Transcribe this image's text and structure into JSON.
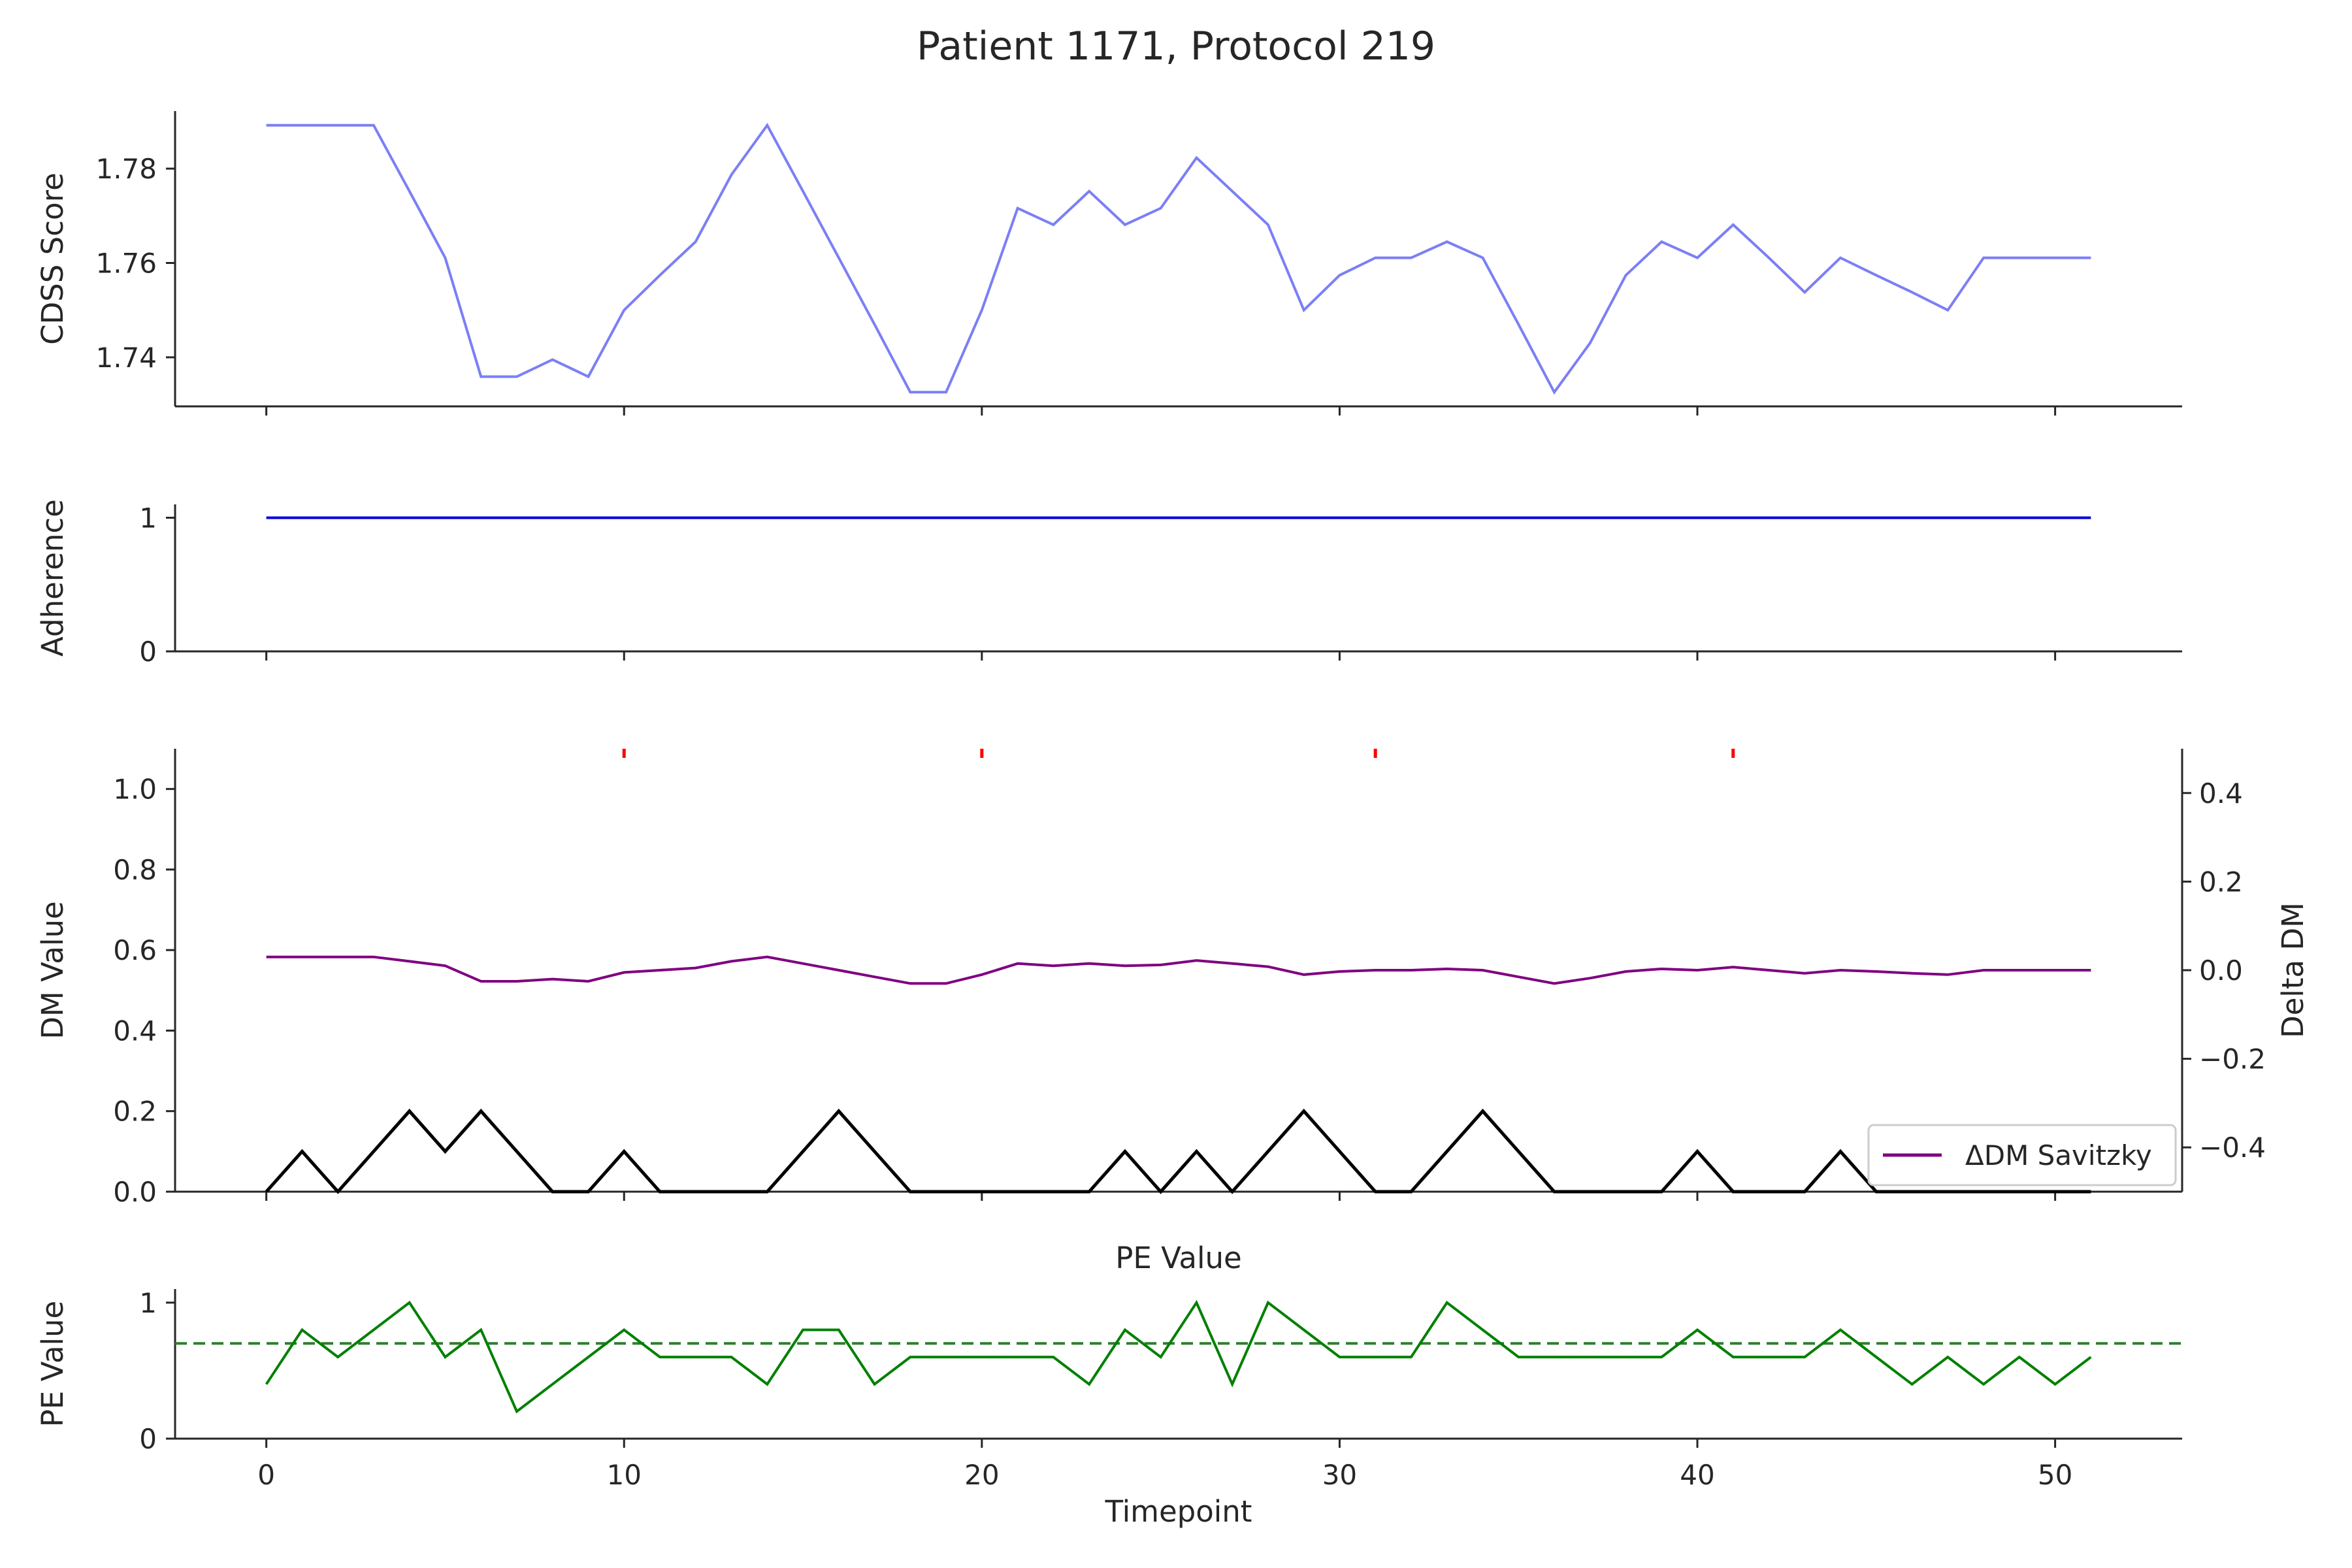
{
  "title": "Patient 1171, Protocol 219",
  "chart_data": [
    {
      "id": "cdss",
      "type": "line",
      "title": "",
      "xlabel": "",
      "ylabel": "CDSS Score",
      "xlim": [
        -2.55,
        53.55
      ],
      "ylim": [
        1.7296,
        1.7922
      ],
      "yticks": [
        1.74,
        1.76,
        1.78
      ],
      "ytick_labels": [
        "1.74",
        "1.76",
        "1.78"
      ],
      "xticks": [
        0,
        10,
        20,
        30,
        40,
        50
      ],
      "x": [
        0,
        1,
        2,
        3,
        4,
        5,
        6,
        7,
        8,
        9,
        10,
        11,
        12,
        13,
        14,
        15,
        16,
        17,
        18,
        19,
        20,
        21,
        22,
        23,
        24,
        25,
        26,
        27,
        28,
        29,
        30,
        31,
        32,
        33,
        34,
        35,
        36,
        37,
        38,
        39,
        40,
        41,
        42,
        43,
        44,
        45,
        46,
        47,
        48,
        49,
        50,
        51
      ],
      "series": [
        {
          "values": [
            1.7892,
            1.7892,
            1.7892,
            1.7892,
            1.7752,
            1.7611,
            1.7359,
            1.7359,
            1.7395,
            1.7359,
            1.75,
            1.7574,
            1.7645,
            1.7787,
            1.7892,
            1.7752,
            1.7611,
            1.747,
            1.7326,
            1.7326,
            1.75,
            1.7716,
            1.7681,
            1.7752,
            1.7681,
            1.7716,
            1.7823,
            1.7752,
            1.7681,
            1.75,
            1.7574,
            1.7611,
            1.7611,
            1.7645,
            1.7611,
            1.747,
            1.7326,
            1.743,
            1.7574,
            1.7645,
            1.7611,
            1.7681,
            1.7611,
            1.7538,
            1.7611,
            1.7574,
            1.7538,
            1.75,
            1.7611,
            1.7611,
            1.7611,
            1.7611
          ],
          "color": "#7b7ff5"
        }
      ],
      "grid": false
    },
    {
      "id": "adherence",
      "type": "line",
      "title": "",
      "xlabel": "",
      "ylabel": "Adherence",
      "xlim": [
        -2.55,
        53.55
      ],
      "ylim": [
        0,
        1.1
      ],
      "yticks": [
        0,
        1
      ],
      "ytick_labels": [
        "0",
        "1"
      ],
      "xticks": [
        0,
        10,
        20,
        30,
        40,
        50
      ],
      "x": [
        0,
        51
      ],
      "series": [
        {
          "values": [
            1,
            1
          ],
          "color": "#0000dd"
        }
      ],
      "grid": false
    },
    {
      "id": "dm",
      "type": "line",
      "title": "",
      "xlabel": "",
      "ylabel": "DM Value",
      "ylabel_right": "Delta DM",
      "xlim": [
        -2.55,
        53.55
      ],
      "ylim": [
        0,
        1.1
      ],
      "ylim_right": [
        -0.5,
        0.5
      ],
      "yticks": [
        0.0,
        0.2,
        0.4,
        0.6,
        0.8,
        1.0
      ],
      "ytick_labels": [
        "0.0",
        "0.2",
        "0.4",
        "0.6",
        "0.8",
        "1.0"
      ],
      "yticks_right": [
        -0.4,
        -0.2,
        0.0,
        0.2,
        0.4
      ],
      "ytick_labels_right": [
        "−0.4",
        "−0.2",
        "0.0",
        "0.2",
        "0.4"
      ],
      "xticks": [
        0,
        10,
        20,
        30,
        40,
        50
      ],
      "x": [
        0,
        1,
        2,
        3,
        4,
        5,
        6,
        7,
        8,
        9,
        10,
        11,
        12,
        13,
        14,
        15,
        16,
        17,
        18,
        19,
        20,
        21,
        22,
        23,
        24,
        25,
        26,
        27,
        28,
        29,
        30,
        31,
        32,
        33,
        34,
        35,
        36,
        37,
        38,
        39,
        40,
        41,
        42,
        43,
        44,
        45,
        46,
        47,
        48,
        49,
        50,
        51
      ],
      "series": [
        {
          "axis": "left",
          "values": [
            0,
            0.1,
            0,
            0.1,
            0.2,
            0.1,
            0.2,
            0.1,
            0,
            0,
            0.1,
            0,
            0,
            0,
            0,
            0.1,
            0.2,
            0.1,
            0,
            0,
            0,
            0,
            0,
            0,
            0.1,
            0,
            0.1,
            0,
            0.1,
            0.2,
            0.1,
            0,
            0,
            0.1,
            0.2,
            0.1,
            0,
            0,
            0,
            0,
            0.1,
            0,
            0,
            0,
            0.1,
            0,
            0,
            0,
            0,
            0,
            0,
            0
          ],
          "color": "#000000"
        },
        {
          "axis": "right",
          "name": "ΔDM Savitzky",
          "values": [
            0.03,
            0.03,
            0.03,
            0.03,
            0.02,
            0.01,
            -0.025,
            -0.025,
            -0.02,
            -0.025,
            -0.005,
            0.0,
            0.005,
            0.02,
            0.03,
            0.015,
            0.0,
            -0.015,
            -0.03,
            -0.03,
            -0.01,
            0.015,
            0.01,
            0.015,
            0.01,
            0.012,
            0.022,
            0.015,
            0.008,
            -0.01,
            -0.003,
            0.0,
            0.0,
            0.003,
            0.0,
            -0.015,
            -0.03,
            -0.018,
            -0.003,
            0.003,
            0.0,
            0.007,
            0.0,
            -0.007,
            0.0,
            -0.003,
            -0.007,
            -0.01,
            0.0,
            0.0,
            0.0,
            0.0
          ],
          "color": "#800080"
        }
      ],
      "markers": {
        "x": [
          10,
          20,
          31,
          41
        ],
        "y": 1.1,
        "color": "#ff0000"
      },
      "legend": {
        "placement": "lower right",
        "entries": [
          "ΔDM Savitzky"
        ]
      },
      "grid": false
    },
    {
      "id": "pe",
      "type": "line",
      "title": "PE Value",
      "xlabel": "Timepoint",
      "ylabel": "PE Value",
      "xlim": [
        -2.55,
        53.55
      ],
      "ylim": [
        0,
        1.1
      ],
      "yticks": [
        0,
        1
      ],
      "ytick_labels": [
        "0",
        "1"
      ],
      "xticks": [
        0,
        10,
        20,
        30,
        40,
        50
      ],
      "xtick_labels": [
        "0",
        "10",
        "20",
        "30",
        "40",
        "50"
      ],
      "x": [
        0,
        1,
        2,
        3,
        4,
        5,
        6,
        7,
        8,
        9,
        10,
        11,
        12,
        13,
        14,
        15,
        16,
        17,
        18,
        19,
        20,
        21,
        22,
        23,
        24,
        25,
        26,
        27,
        28,
        29,
        30,
        31,
        32,
        33,
        34,
        35,
        36,
        37,
        38,
        39,
        40,
        41,
        42,
        43,
        44,
        45,
        46,
        47,
        48,
        49,
        50,
        51
      ],
      "series": [
        {
          "values": [
            0.4,
            0.8,
            0.6,
            0.8,
            1.0,
            0.6,
            0.8,
            0.2,
            0.4,
            0.6,
            0.8,
            0.6,
            0.6,
            0.6,
            0.4,
            0.8,
            0.8,
            0.4,
            0.6,
            0.6,
            0.6,
            0.6,
            0.6,
            0.4,
            0.8,
            0.6,
            1.0,
            0.4,
            1.0,
            0.8,
            0.6,
            0.6,
            0.6,
            1.0,
            0.8,
            0.6,
            0.6,
            0.6,
            0.6,
            0.6,
            0.8,
            0.6,
            0.6,
            0.6,
            0.8,
            0.6,
            0.4,
            0.6,
            0.4,
            0.6,
            0.4,
            0.6
          ],
          "color": "#008000"
        }
      ],
      "threshold": {
        "y": 0.7,
        "color": "#2e7d2e",
        "style": "dashed"
      },
      "grid": false
    }
  ]
}
